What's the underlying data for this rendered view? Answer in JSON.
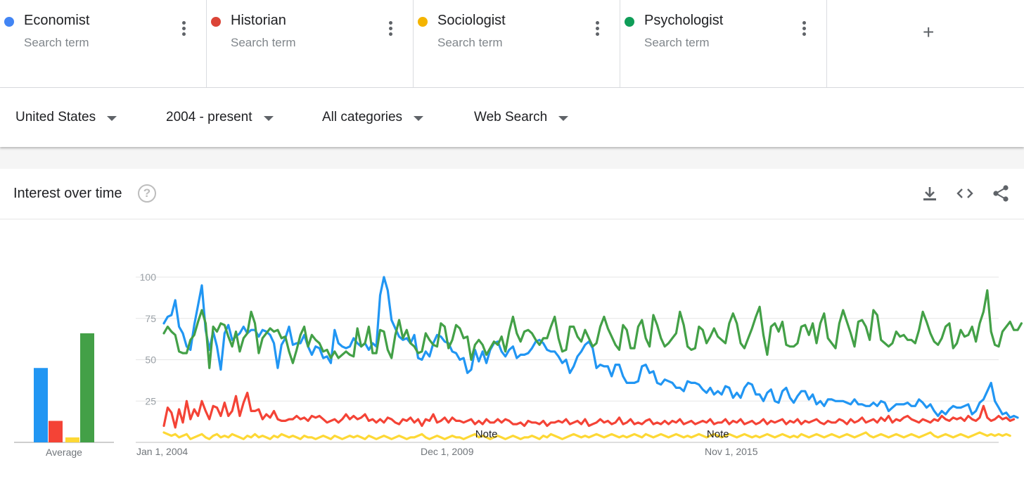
{
  "search_terms": [
    {
      "label": "Economist",
      "sublabel": "Search term",
      "color": "#4285f4"
    },
    {
      "label": "Historian",
      "sublabel": "Search term",
      "color": "#db4437"
    },
    {
      "label": "Sociologist",
      "sublabel": "Search term",
      "color": "#f4b400"
    },
    {
      "label": "Psychologist",
      "sublabel": "Search term",
      "color": "#0f9d58"
    }
  ],
  "add_term_icon": "+",
  "filters": {
    "region": "United States",
    "time_range": "2004 - present",
    "category": "All categories",
    "search_type": "Web Search"
  },
  "panel": {
    "title": "Interest over time",
    "help_icon": "?",
    "actions": [
      "download-icon",
      "embed-icon",
      "share-icon"
    ]
  },
  "chart_data": [
    {
      "type": "bar",
      "xlabel": "Average",
      "categories": [
        "Economist",
        "Historian",
        "Sociologist",
        "Psychologist"
      ],
      "values": [
        45,
        13,
        3,
        66
      ],
      "colors": [
        "#2196f3",
        "#f44336",
        "#fdd835",
        "#43a047"
      ],
      "ylim": [
        0,
        100
      ]
    },
    {
      "type": "line",
      "x_tick_labels": [
        "Jan 1, 2004",
        "Dec 1, 2009",
        "Nov 1, 2015"
      ],
      "y_tick_labels": [
        "100",
        "75",
        "50",
        "25"
      ],
      "ylim": [
        0,
        100
      ],
      "x_range_months": [
        0,
        220
      ],
      "grid": true,
      "annotations": [
        {
          "label": "Note",
          "month": 85
        },
        {
          "label": "Note",
          "month": 146
        }
      ],
      "series": [
        {
          "name": "Economist",
          "color": "#2196f3",
          "values": [
            72,
            76,
            77,
            86,
            70,
            66,
            58,
            56,
            71,
            83,
            95,
            68,
            56,
            67,
            58,
            44,
            66,
            71,
            62,
            64,
            66,
            70,
            66,
            68,
            68,
            64,
            68,
            67,
            65,
            60,
            45,
            59,
            63,
            70,
            59,
            60,
            60,
            65,
            58,
            53,
            58,
            57,
            51,
            52,
            48,
            68,
            60,
            58,
            57,
            58,
            63,
            60,
            58,
            60,
            56,
            60,
            58,
            89,
            100,
            92,
            74,
            69,
            64,
            62,
            63,
            60,
            65,
            51,
            50,
            55,
            52,
            60,
            65,
            64,
            61,
            60,
            55,
            54,
            50,
            51,
            42,
            44,
            56,
            49,
            55,
            48,
            56,
            60,
            61,
            55,
            52,
            56,
            58,
            51,
            53,
            53,
            54,
            57,
            61,
            62,
            60,
            56,
            55,
            55,
            52,
            48,
            50,
            42,
            46,
            52,
            55,
            59,
            61,
            57,
            45,
            47,
            46,
            46,
            40,
            47,
            47,
            40,
            36,
            36,
            36,
            37,
            46,
            47,
            42,
            43,
            36,
            35,
            38,
            37,
            36,
            33,
            33,
            31,
            37,
            36,
            36,
            35,
            32,
            30,
            33,
            29,
            31,
            29,
            34,
            33,
            27,
            30,
            27,
            33,
            36,
            35,
            29,
            29,
            25,
            30,
            32,
            25,
            24,
            31,
            33,
            27,
            24,
            28,
            31,
            31,
            26,
            29,
            23,
            25,
            22,
            26,
            26,
            25,
            25,
            25,
            24,
            23,
            26,
            23,
            23,
            22,
            22,
            24,
            22,
            25,
            24,
            19,
            21,
            23,
            23,
            23,
            24,
            22,
            22,
            26,
            24,
            21,
            23,
            19,
            16,
            19,
            17,
            20,
            22,
            21,
            21,
            22,
            23,
            17,
            19,
            24,
            26,
            31,
            36,
            25,
            21,
            17,
            18,
            15,
            16,
            15
          ],
          "width": 3.2
        },
        {
          "name": "Historian",
          "color": "#f44336",
          "values": [
            10,
            21,
            18,
            9,
            20,
            12,
            25,
            14,
            20,
            16,
            25,
            19,
            14,
            22,
            21,
            16,
            24,
            16,
            19,
            28,
            16,
            24,
            30,
            19,
            19,
            20,
            14,
            17,
            15,
            19,
            14,
            13,
            13,
            14,
            14,
            16,
            14,
            15,
            13,
            16,
            15,
            16,
            14,
            12,
            13,
            14,
            12,
            14,
            17,
            14,
            16,
            14,
            15,
            17,
            13,
            14,
            12,
            14,
            12,
            15,
            14,
            12,
            11,
            14,
            13,
            15,
            12,
            14,
            10,
            14,
            13,
            17,
            12,
            13,
            15,
            12,
            15,
            13,
            13,
            12,
            13,
            14,
            11,
            13,
            11,
            14,
            12,
            12,
            14,
            12,
            14,
            13,
            11,
            11,
            12,
            10,
            13,
            12,
            12,
            11,
            13,
            10,
            12,
            12,
            13,
            12,
            14,
            11,
            12,
            13,
            11,
            14,
            10,
            11,
            12,
            14,
            12,
            13,
            11,
            12,
            15,
            11,
            12,
            14,
            11,
            12,
            11,
            13,
            14,
            11,
            12,
            11,
            13,
            11,
            13,
            12,
            14,
            11,
            12,
            13,
            11,
            12,
            13,
            12,
            14,
            11,
            12,
            12,
            14,
            11,
            13,
            12,
            14,
            11,
            12,
            13,
            11,
            12,
            14,
            11,
            13,
            12,
            13,
            14,
            11,
            13,
            12,
            14,
            11,
            13,
            12,
            13,
            14,
            12,
            11,
            13,
            12,
            12,
            14,
            13,
            11,
            14,
            12,
            13,
            15,
            12,
            13,
            14,
            12,
            15,
            13,
            16,
            12,
            14,
            13,
            15,
            16,
            14,
            13,
            12,
            14,
            13,
            12,
            14,
            13,
            16,
            14,
            13,
            15,
            14,
            15,
            13,
            16,
            14,
            13,
            15,
            22,
            15,
            13,
            14,
            16,
            14,
            15,
            13,
            14
          ],
          "width": 3.2
        },
        {
          "name": "Sociologist",
          "color": "#fdd835",
          "values": [
            6,
            5,
            4,
            5,
            3,
            4,
            5,
            2,
            3,
            4,
            5,
            3,
            2,
            4,
            5,
            3,
            4,
            3,
            5,
            4,
            3,
            2,
            4,
            3,
            5,
            3,
            4,
            3,
            2,
            4,
            3,
            5,
            4,
            3,
            4,
            3,
            2,
            4,
            3,
            3,
            2,
            3,
            4,
            3,
            2,
            4,
            3,
            2,
            3,
            4,
            3,
            4,
            3,
            2,
            4,
            3,
            2,
            3,
            4,
            3,
            2,
            3,
            4,
            3,
            2,
            3,
            3,
            4,
            5,
            3,
            2,
            3,
            4,
            3,
            2,
            3,
            4,
            3,
            3,
            2,
            3,
            4,
            5,
            3,
            4,
            3,
            2,
            3,
            4,
            3,
            2,
            3,
            4,
            3,
            2,
            3,
            3,
            4,
            3,
            2,
            4,
            3,
            5,
            4,
            3,
            2,
            3,
            4,
            5,
            4,
            3,
            4,
            3,
            4,
            5,
            4,
            3,
            4,
            5,
            4,
            3,
            4,
            3,
            4,
            5,
            4,
            3,
            5,
            4,
            3,
            4,
            5,
            4,
            3,
            4,
            5,
            4,
            3,
            4,
            3,
            4,
            5,
            4,
            3,
            4,
            5,
            4,
            3,
            4,
            5,
            4,
            3,
            4,
            5,
            4,
            3,
            4,
            3,
            4,
            5,
            4,
            3,
            4,
            5,
            4,
            3,
            4,
            3,
            5,
            4,
            3,
            4,
            5,
            4,
            3,
            4,
            5,
            4,
            3,
            4,
            5,
            4,
            3,
            4,
            5,
            6,
            4,
            3,
            4,
            5,
            4,
            3,
            4,
            5,
            4,
            3,
            4,
            5,
            4,
            3,
            4,
            5,
            6,
            4,
            3,
            4,
            5,
            4,
            3,
            4,
            5,
            4,
            3,
            4,
            5,
            6,
            5,
            4,
            5,
            4,
            5,
            4,
            5,
            4
          ],
          "width": 3.2
        },
        {
          "name": "Psychologist",
          "color": "#43a047",
          "values": [
            66,
            70,
            67,
            65,
            55,
            54,
            54,
            62,
            65,
            73,
            80,
            72,
            45,
            70,
            67,
            72,
            71,
            64,
            58,
            67,
            55,
            63,
            66,
            79,
            72,
            54,
            63,
            66,
            69,
            67,
            68,
            63,
            64,
            55,
            48,
            56,
            65,
            70,
            58,
            65,
            62,
            60,
            55,
            56,
            51,
            55,
            51,
            53,
            55,
            53,
            52,
            69,
            58,
            60,
            70,
            54,
            54,
            68,
            67,
            56,
            51,
            65,
            74,
            63,
            68,
            60,
            58,
            54,
            55,
            66,
            62,
            59,
            58,
            72,
            70,
            57,
            62,
            71,
            69,
            63,
            64,
            50,
            59,
            62,
            59,
            53,
            57,
            61,
            59,
            64,
            55,
            67,
            76,
            66,
            61,
            67,
            68,
            66,
            62,
            59,
            63,
            63,
            70,
            76,
            63,
            55,
            56,
            70,
            70,
            64,
            61,
            68,
            63,
            58,
            60,
            70,
            76,
            69,
            64,
            59,
            56,
            71,
            68,
            57,
            57,
            70,
            74,
            63,
            58,
            77,
            71,
            63,
            58,
            60,
            63,
            66,
            79,
            71,
            58,
            56,
            57,
            70,
            68,
            60,
            64,
            69,
            64,
            62,
            60,
            72,
            78,
            72,
            60,
            57,
            63,
            69,
            76,
            82,
            65,
            53,
            70,
            72,
            67,
            73,
            59,
            58,
            58,
            60,
            70,
            71,
            65,
            72,
            60,
            72,
            78,
            63,
            60,
            57,
            72,
            80,
            73,
            66,
            58,
            73,
            74,
            70,
            62,
            80,
            77,
            62,
            60,
            58,
            60,
            67,
            64,
            65,
            62,
            62,
            60,
            68,
            79,
            73,
            66,
            61,
            59,
            63,
            70,
            72,
            57,
            60,
            68,
            64,
            65,
            70,
            61,
            72,
            79,
            92,
            67,
            59,
            58,
            67,
            70,
            73,
            68,
            68,
            72
          ],
          "width": 3.2
        }
      ]
    }
  ]
}
